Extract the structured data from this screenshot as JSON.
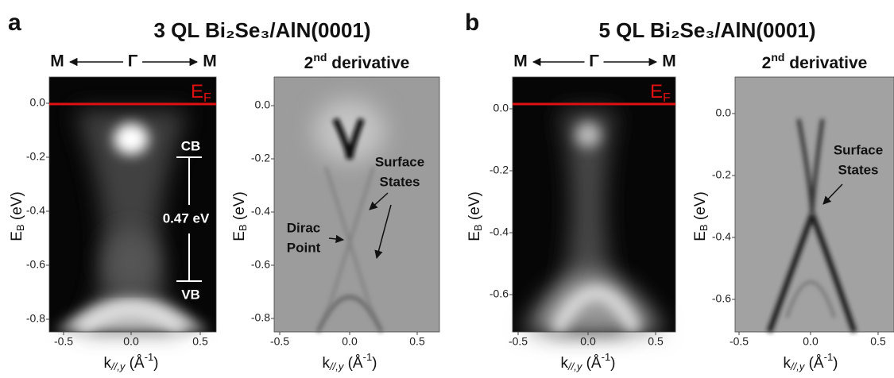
{
  "figure": {
    "panels": [
      {
        "letter": "a",
        "title": "3 QL Bi₂Se₃/AlN(0001)"
      },
      {
        "letter": "b",
        "title": "5 QL Bi₂Se₃/AlN(0001)"
      }
    ],
    "ylabel": {
      "main": "E",
      "sub": "B",
      "rest": " (eV)"
    },
    "xlabel": {
      "main": "k",
      "sub": "//,y",
      "rest": " (Å",
      "sup": "-1",
      "end": ")"
    },
    "raw_header": {
      "left": "M",
      "center": "Γ",
      "right": "M"
    },
    "derivative_header": {
      "main": "2",
      "sup": "nd",
      "rest": " derivative"
    },
    "fermi_label": {
      "main": "E",
      "sub": "F"
    },
    "plots": [
      {
        "yticks": [
          "0.0",
          "-0.2",
          "-0.4",
          "-0.6",
          "-0.8"
        ],
        "xticks": [
          "-0.5",
          "0.0",
          "0.5"
        ],
        "annotations": [
          [
            "CB"
          ],
          [
            "0.47 eV"
          ],
          [
            "VB"
          ]
        ]
      },
      {
        "yticks": [
          "0.0",
          "-0.2",
          "-0.4",
          "-0.6",
          "-0.8"
        ],
        "xticks": [
          "-0.5",
          "0.0",
          "0.5"
        ],
        "annotations": [
          [
            "Surface",
            "States"
          ],
          [
            "Dirac",
            "Point"
          ]
        ]
      },
      {
        "yticks": [
          "0.0",
          "-0.2",
          "-0.4",
          "-0.6"
        ],
        "xticks": [
          "-0.5",
          "0.0",
          "0.5"
        ],
        "annotations": []
      },
      {
        "yticks": [
          "0.0",
          "-0.2",
          "-0.4",
          "-0.6"
        ],
        "xticks": [
          "-0.5",
          "0.0",
          "0.5"
        ],
        "annotations": [
          [
            "Surface",
            "States"
          ]
        ]
      }
    ]
  }
}
